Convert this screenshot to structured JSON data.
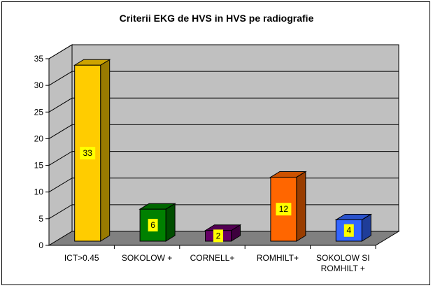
{
  "chart_data": {
    "type": "bar",
    "title": "Criterii EKG de HVS in HVS pe radiografie",
    "categories": [
      [
        "ICT>0.45"
      ],
      [
        "SOKOLOW +"
      ],
      [
        "CORNELL+"
      ],
      [
        "ROMHILT+"
      ],
      [
        "SOKOLOW SI",
        "ROMHILT +"
      ]
    ],
    "values": [
      33,
      6,
      2,
      12,
      4
    ],
    "colors": [
      "#ffcc00",
      "#008000",
      "#660066",
      "#ff6600",
      "#3366ff"
    ],
    "ylim": [
      0,
      35
    ],
    "yticks": [
      0,
      5,
      10,
      15,
      20,
      25,
      30,
      35
    ],
    "grid": true,
    "three_d": true,
    "data_label_background": "#ffff00",
    "wall_color": "#c0c0c0",
    "floor_color": "#808080"
  }
}
